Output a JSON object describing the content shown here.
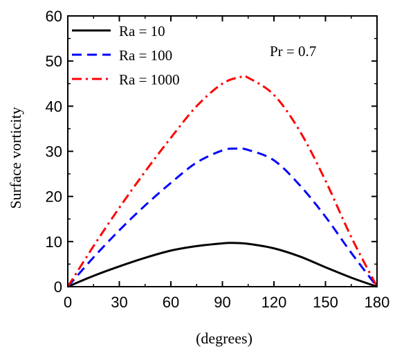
{
  "chart_data": {
    "type": "line",
    "xlabel": "(degrees)",
    "ylabel": "Surface vorticity",
    "xlim": [
      0,
      180
    ],
    "ylim": [
      0,
      60
    ],
    "xticks": [
      0,
      30,
      60,
      90,
      120,
      150,
      180
    ],
    "yticks": [
      0,
      10,
      20,
      30,
      40,
      50,
      60
    ],
    "grid": false,
    "legend_position": "top-left",
    "annotation": "Pr = 0.7",
    "series": [
      {
        "name": "Ra = 10",
        "color": "#000000",
        "style": "solid",
        "x": [
          0,
          15,
          30,
          45,
          60,
          75,
          90,
          96,
          105,
          120,
          135,
          150,
          165,
          180
        ],
        "y": [
          0,
          2.4,
          4.5,
          6.4,
          8.0,
          9.0,
          9.6,
          9.7,
          9.5,
          8.5,
          6.7,
          4.3,
          2.0,
          0
        ]
      },
      {
        "name": "Ra = 100",
        "color": "#0000ff",
        "style": "dashed",
        "x": [
          0,
          15,
          30,
          45,
          60,
          75,
          90,
          98,
          105,
          120,
          135,
          150,
          165,
          180
        ],
        "y": [
          0,
          6.5,
          12.5,
          18.0,
          23.0,
          27.5,
          30.2,
          30.6,
          30.3,
          28.0,
          22.5,
          15.5,
          7.5,
          0
        ]
      },
      {
        "name": "Ra = 1000",
        "color": "#ff0000",
        "style": "dashdot",
        "x": [
          0,
          15,
          30,
          45,
          60,
          75,
          90,
          101,
          105,
          120,
          135,
          150,
          165,
          180
        ],
        "y": [
          0,
          9.0,
          17.5,
          25.5,
          33.0,
          40.0,
          45.0,
          46.5,
          46.3,
          42.5,
          34.5,
          23.5,
          11.0,
          0
        ]
      }
    ]
  }
}
